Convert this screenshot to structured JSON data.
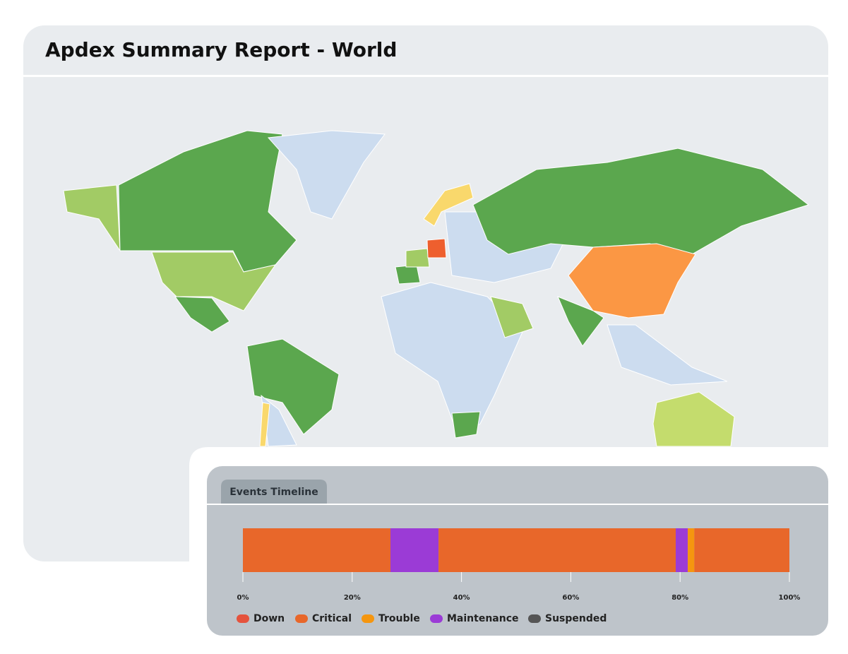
{
  "header": {
    "title": "Apdex Summary Report - World"
  },
  "chart_data": {
    "type": "timeline",
    "title": "Events Timeline",
    "segments": [
      {
        "color": "#e8672a",
        "value": 27
      },
      {
        "color": "#9b3bd6",
        "value": 8.8
      },
      {
        "color": "#e8672a",
        "value": 43.4
      },
      {
        "color": "#9b3bd6",
        "value": 2.2
      },
      {
        "color": "#f5960f",
        "value": 1.2
      },
      {
        "color": "#e8672a",
        "value": 17.4
      }
    ],
    "xlim": [
      0,
      100
    ],
    "xticks": [
      {
        "value": 0,
        "label": "0%"
      },
      {
        "value": 20,
        "label": "20%"
      },
      {
        "value": 40,
        "label": "40%"
      },
      {
        "value": 60,
        "label": "60%"
      },
      {
        "value": 80,
        "label": "80%"
      },
      {
        "value": 100,
        "label": "100%"
      }
    ],
    "legend": [
      {
        "name": "Down",
        "color": "#e5533d"
      },
      {
        "name": "Critical",
        "color": "#e8672a"
      },
      {
        "name": "Trouble",
        "color": "#f5960f"
      },
      {
        "name": "Maintenance",
        "color": "#9b3bd6"
      },
      {
        "name": "Suspended",
        "color": "#555555"
      }
    ]
  }
}
